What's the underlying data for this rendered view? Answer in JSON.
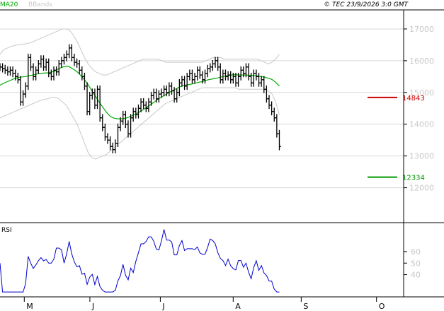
{
  "chart_data": {
    "type": "ohlc",
    "legend": [
      {
        "label": "MA20",
        "color": "#00aa00"
      },
      {
        "label": "BBands",
        "color": "#c8c8c8"
      }
    ],
    "copyright": "© TEC 23/9/2026 3:0 GMT",
    "price_axis": {
      "ylim": [
        10900,
        17600
      ],
      "ticks": [
        {
          "value": 17000,
          "label": "17000"
        },
        {
          "value": 16000,
          "label": "16000"
        },
        {
          "value": 15000,
          "label": "15000"
        },
        {
          "value": 14000,
          "label": "14000"
        },
        {
          "value": 13000,
          "label": "13000"
        },
        {
          "value": 12000,
          "label": "12000"
        }
      ]
    },
    "x_axis": {
      "range": [
        0,
        165
      ],
      "months": [
        {
          "label": "M",
          "index": 10
        },
        {
          "label": "J",
          "index": 37
        },
        {
          "label": "J",
          "index": 66
        },
        {
          "label": "A",
          "index": 96
        },
        {
          "label": "S",
          "index": 124
        },
        {
          "label": "O",
          "index": 155
        }
      ]
    },
    "levels": [
      {
        "value": 14843,
        "label": "14843",
        "color": "#cc0000"
      },
      {
        "value": 12334,
        "label": "12334",
        "color": "#009900"
      }
    ],
    "rsi": {
      "label": "RSI",
      "ylim": [
        22,
        82
      ],
      "ticks": [
        {
          "value": 60,
          "label": "60"
        },
        {
          "value": 50,
          "label": "50"
        },
        {
          "value": 40,
          "label": "40"
        }
      ],
      "color": "#0000cc"
    },
    "closes": [
      15800,
      15750,
      15700,
      15650,
      15700,
      15600,
      15500,
      15400,
      14700,
      14950,
      15200,
      16100,
      15800,
      15500,
      15700,
      15900,
      16050,
      15800,
      15950,
      15600,
      15500,
      15700,
      15650,
      15900,
      16000,
      16100,
      16200,
      16400,
      16100,
      15950,
      15900,
      15700,
      15500,
      15200,
      14400,
      14900,
      15000,
      14600,
      15100,
      14200,
      13900,
      13600,
      13500,
      13300,
      13200,
      13400,
      13900,
      14100,
      14300,
      14000,
      13700,
      14200,
      14400,
      14300,
      14500,
      14700,
      14600,
      14500,
      14700,
      14900,
      15000,
      14800,
      14950,
      15000,
      15100,
      15000,
      15200,
      15050,
      14800,
      15000,
      15300,
      15400,
      15200,
      15500,
      15600,
      15400,
      15500,
      15700,
      15550,
      15400,
      15600,
      15750,
      15800,
      15900,
      16000,
      15800,
      15400,
      15600,
      15500,
      15550,
      15400,
      15500,
      15300,
      15500,
      15700,
      15600,
      15800,
      15500,
      15300,
      15600,
      15500,
      15300,
      15400,
      15100,
      14800,
      14600,
      14400,
      14200,
      13700,
      13300
    ],
    "ma20": [
      15230,
      15290,
      15340,
      15390,
      15440,
      15470,
      15490,
      15500,
      15530,
      15550,
      15580,
      15600,
      15610,
      15620,
      15640,
      15680,
      15750,
      15800,
      15830,
      15800,
      15730,
      15650,
      15530,
      15400,
      15240,
      15050,
      14870,
      14700,
      14530,
      14370,
      14250,
      14190,
      14170,
      14170,
      14180,
      14220,
      14270,
      14330,
      14390,
      14460,
      14540,
      14620,
      14700,
      14790,
      14860,
      14930,
      15000,
      15060,
      15120,
      15180,
      15220,
      15240,
      15260,
      15290,
      15320,
      15340,
      15380,
      15410,
      15430,
      15450,
      15480,
      15510,
      15530,
      15550,
      15560,
      15550,
      15550,
      15550,
      15540,
      15530,
      15520,
      15500,
      15480,
      15450,
      15410,
      15320,
      15200
    ],
    "ma_start_index": 0,
    "bb_upper": [
      16200,
      16350,
      16400,
      16450,
      16480,
      16500,
      16520,
      16530,
      16560,
      16600,
      16650,
      16700,
      16750,
      16800,
      16850,
      16900,
      16950,
      17000,
      17000,
      16950,
      16800,
      16600,
      16350,
      16100,
      15900,
      15750,
      15650,
      15600,
      15550,
      15550,
      15600,
      15650,
      15700,
      15750,
      15800,
      15850,
      15900,
      15950,
      16000,
      16050,
      16050,
      16050,
      16050,
      16050,
      16000,
      15950,
      15950,
      15950,
      15950,
      15950,
      15950,
      15950,
      15950,
      15950,
      15950,
      15950,
      16000,
      16050,
      16100,
      16100,
      16100,
      16050,
      16050,
      16050,
      16050,
      16050,
      16050,
      16050,
      16050,
      16050,
      16050,
      16000,
      15950,
      15900,
      15950,
      16050,
      16200
    ],
    "bb_lower": [
      14200,
      14250,
      14300,
      14350,
      14400,
      14450,
      14500,
      14550,
      14600,
      14650,
      14700,
      14750,
      14780,
      14800,
      14850,
      14850,
      14800,
      14700,
      14600,
      14400,
      14200,
      14000,
      13700,
      13400,
      13100,
      12950,
      12900,
      12950,
      13000,
      13050,
      13150,
      13250,
      13350,
      13450,
      13550,
      13650,
      13750,
      13850,
      13950,
      14050,
      14150,
      14250,
      14350,
      14450,
      14550,
      14650,
      14700,
      14750,
      14800,
      14850,
      14900,
      14950,
      15000,
      15050,
      15100,
      15150,
      15150,
      15150,
      15150,
      15150,
      15150,
      15150,
      15150,
      15150,
      15150,
      15100,
      15100,
      15100,
      15100,
      15100,
      15100,
      15100,
      15100,
      15050,
      14950,
      14700,
      14300
    ]
  }
}
